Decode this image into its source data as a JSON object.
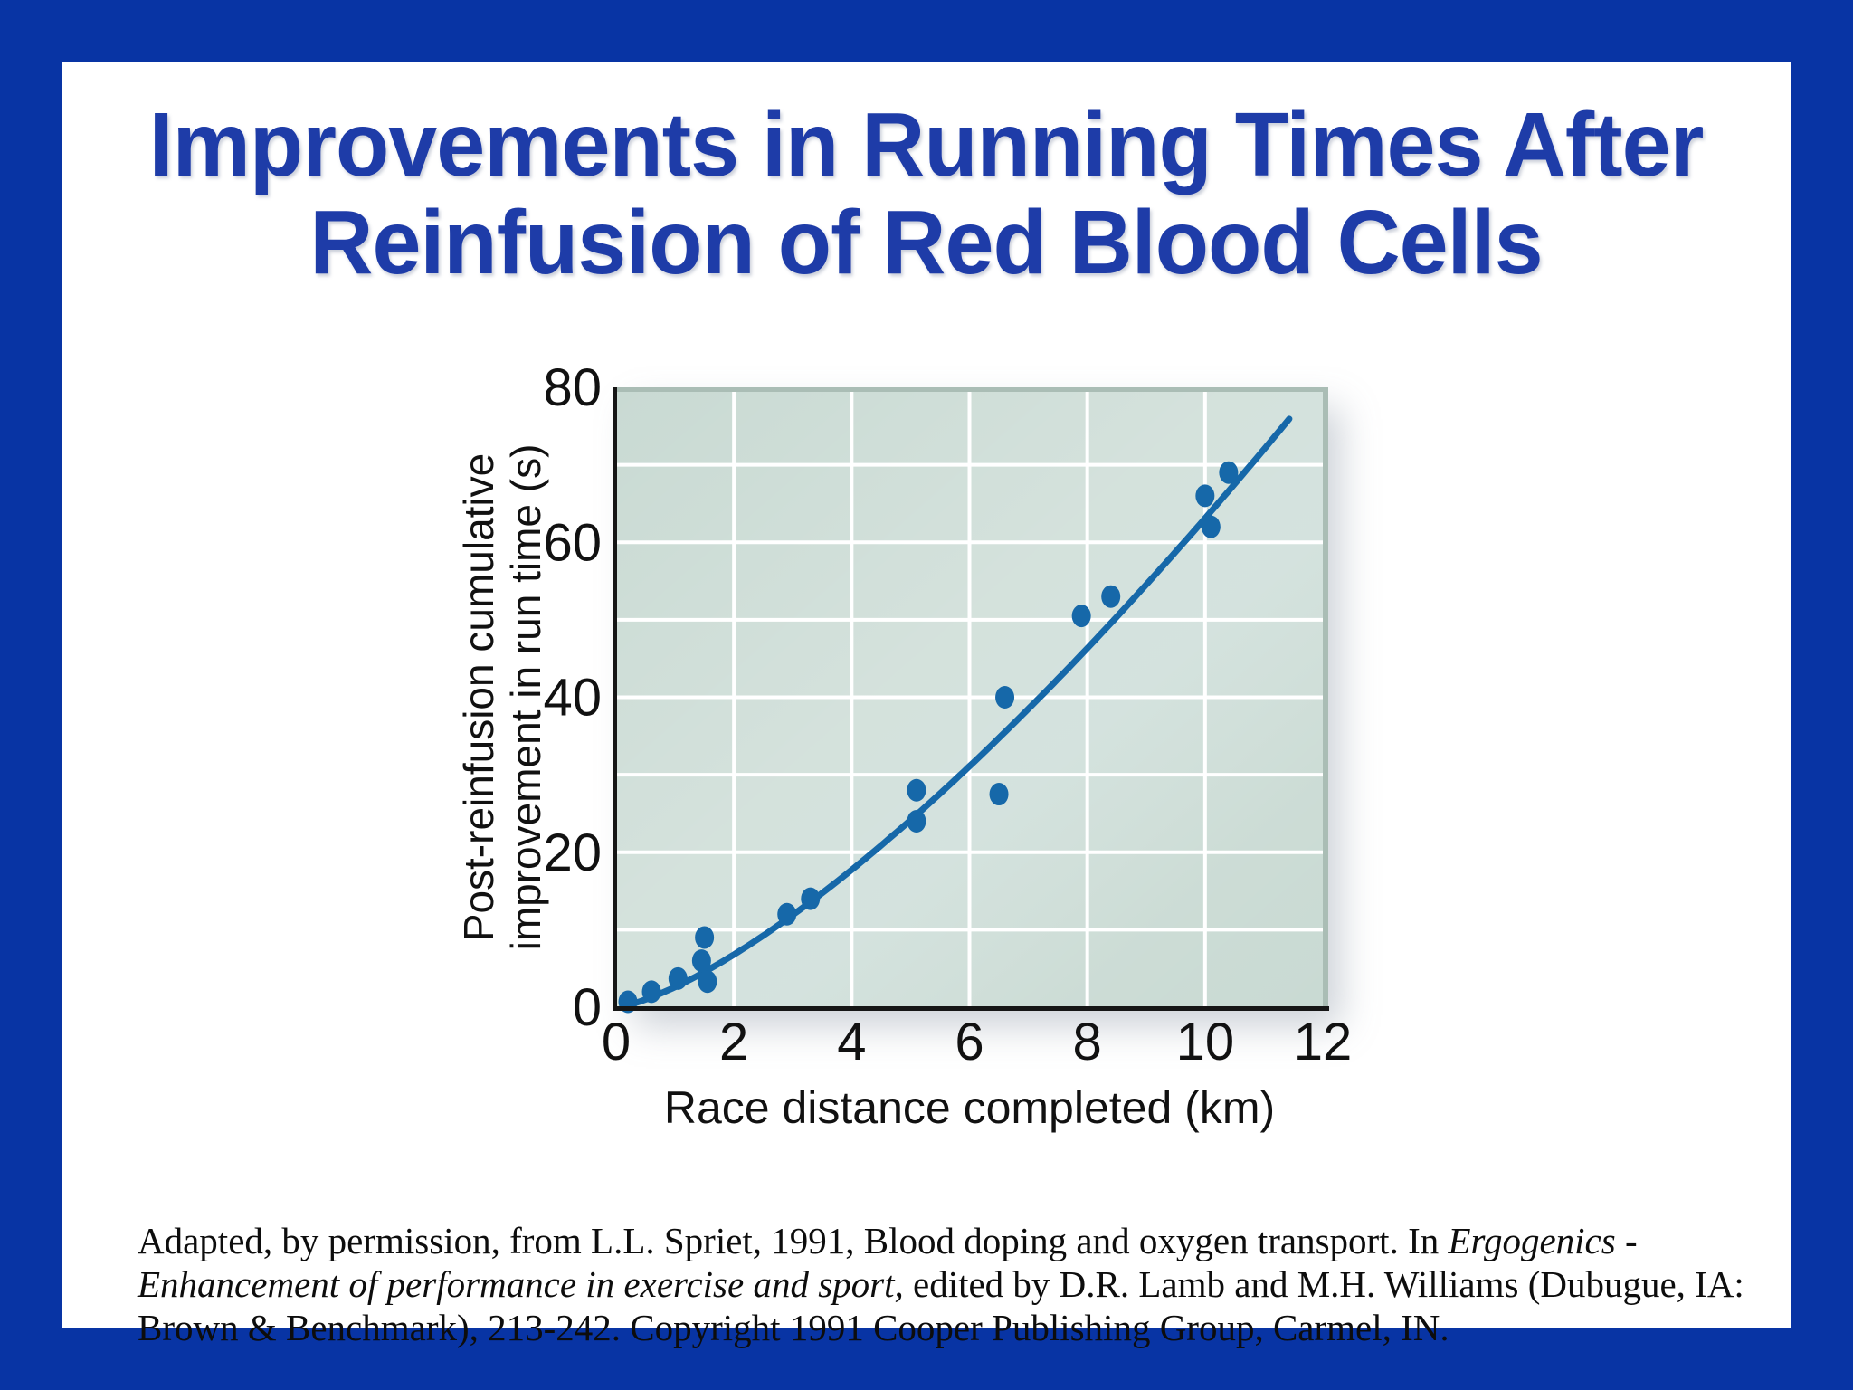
{
  "slide": {
    "title_line1": "Improvements in Running Times After",
    "title_line2": "Reinfusion of Red Blood Cells",
    "citation": {
      "before_italic": "Adapted, by permission, from L.L. Spriet, 1991, Blood doping and oxygen transport. In ",
      "italic": "Ergogenics - Enhancement of performance in exercise and sport,",
      "after_italic": " edited by D.R. Lamb and M.H. Williams (Dubugue, IA: Brown & Benchmark), 213-242. Copyright 1991 Cooper Publishing Group, Carmel, IN."
    }
  },
  "colors": {
    "border_blue": "#0834a4",
    "title_blue": "#1e3ca8",
    "plot_background": "#c9dad3",
    "plot_edge": "#aabdb5",
    "gridline": "#ffffff",
    "data_blue": "#1668a9",
    "axis_black": "#161616",
    "text_black": "#111111"
  },
  "chart_data": {
    "type": "scatter",
    "title": "",
    "xlabel": "Race distance completed (km)",
    "ylabel_line1": "Post-reinfusion cumulative",
    "ylabel_line2": "improvement in run time (s)",
    "xlim": [
      0,
      12
    ],
    "ylim": [
      0,
      80
    ],
    "x_ticks": [
      0,
      2,
      4,
      6,
      8,
      10,
      12
    ],
    "y_ticks": [
      0,
      20,
      40,
      60,
      80
    ],
    "grid_x_step": 2,
    "grid_y_step": 10,
    "grid": "on",
    "legend": "none",
    "points": [
      [
        0.2,
        0.7
      ],
      [
        0.6,
        2
      ],
      [
        1.05,
        3.7
      ],
      [
        1.45,
        6
      ],
      [
        1.5,
        9
      ],
      [
        1.55,
        3.3
      ],
      [
        2.9,
        12
      ],
      [
        3.3,
        14
      ],
      [
        5.1,
        24
      ],
      [
        5.1,
        28
      ],
      [
        6.5,
        27.5
      ],
      [
        6.6,
        40
      ],
      [
        7.9,
        50.5
      ],
      [
        8.4,
        53
      ],
      [
        10.0,
        66
      ],
      [
        10.1,
        62
      ],
      [
        10.4,
        69
      ]
    ],
    "trend_curve": {
      "type": "power",
      "a": 2.6,
      "b": 1.385,
      "x_start": 0.15,
      "x_end": 11.5
    }
  }
}
